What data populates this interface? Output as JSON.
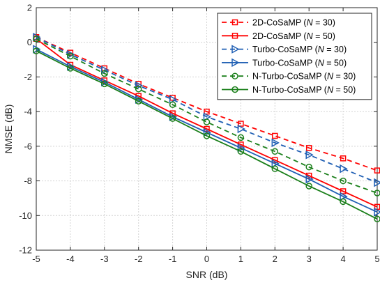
{
  "chart_data": {
    "type": "line",
    "xlabel": "SNR (dB)",
    "ylabel": "NMSE (dB)",
    "xlim": [
      -5,
      5
    ],
    "ylim": [
      -12,
      2
    ],
    "x": [
      -5,
      -4,
      -3,
      -2,
      -1,
      0,
      1,
      2,
      3,
      4,
      5
    ],
    "xticks": [
      -5,
      -4,
      -3,
      -2,
      -1,
      0,
      1,
      2,
      3,
      4,
      5
    ],
    "yticks": [
      -12,
      -10,
      -8,
      -6,
      -4,
      -2,
      0,
      2
    ],
    "grid": true,
    "legend_position": "top-right",
    "series": [
      {
        "name": "2D-CoSaMP (N = 30)",
        "label_main": "2D-CoSaMP (",
        "label_var": "N",
        "label_tail": " = 30)",
        "color": "#ff0000",
        "dash": "dashed",
        "marker": "square",
        "values": [
          0.3,
          -0.6,
          -1.5,
          -2.4,
          -3.2,
          -4.0,
          -4.7,
          -5.4,
          -6.1,
          -6.7,
          -7.4
        ]
      },
      {
        "name": "2D-CoSaMP (N = 50)",
        "label_main": "2D-CoSaMP (",
        "label_var": "N",
        "label_tail": " = 50)",
        "color": "#ff0000",
        "dash": "solid",
        "marker": "square",
        "values": [
          0.2,
          -1.3,
          -2.2,
          -3.1,
          -4.1,
          -5.0,
          -5.9,
          -6.8,
          -7.7,
          -8.6,
          -9.5
        ]
      },
      {
        "name": "Turbo-CoSaMP (N = 30)",
        "label_main": "Turbo-CoSaMP (",
        "label_var": "N",
        "label_tail": " = 30)",
        "color": "#1f5fb4",
        "dash": "dashed",
        "marker": "triangle-right",
        "values": [
          0.3,
          -0.7,
          -1.6,
          -2.5,
          -3.3,
          -4.3,
          -5.0,
          -5.8,
          -6.5,
          -7.3,
          -8.1
        ]
      },
      {
        "name": "Turbo-CoSaMP (N = 50)",
        "label_main": "Turbo-CoSaMP (",
        "label_var": "N",
        "label_tail": " = 50)",
        "color": "#1f5fb4",
        "dash": "solid",
        "marker": "triangle-right",
        "values": [
          -0.4,
          -1.4,
          -2.3,
          -3.3,
          -4.3,
          -5.2,
          -6.1,
          -7.0,
          -7.9,
          -8.9,
          -9.8
        ]
      },
      {
        "name": "N-Turbo-CoSaMP (N = 30)",
        "label_main": "N-Turbo-CoSaMP (",
        "label_var": "N",
        "label_tail": " = 30)",
        "color": "#1a7f1a",
        "dash": "dashed",
        "marker": "circle",
        "values": [
          0.2,
          -0.8,
          -1.8,
          -2.7,
          -3.6,
          -4.6,
          -5.5,
          -6.3,
          -7.2,
          -8.0,
          -8.7
        ]
      },
      {
        "name": "N-Turbo-CoSaMP (N = 50)",
        "label_main": "N-Turbo-CoSaMP (",
        "label_var": "N",
        "label_tail": " = 50)",
        "color": "#1a7f1a",
        "dash": "solid",
        "marker": "circle",
        "values": [
          -0.5,
          -1.5,
          -2.4,
          -3.4,
          -4.4,
          -5.4,
          -6.3,
          -7.3,
          -8.3,
          -9.2,
          -10.2
        ]
      }
    ]
  }
}
